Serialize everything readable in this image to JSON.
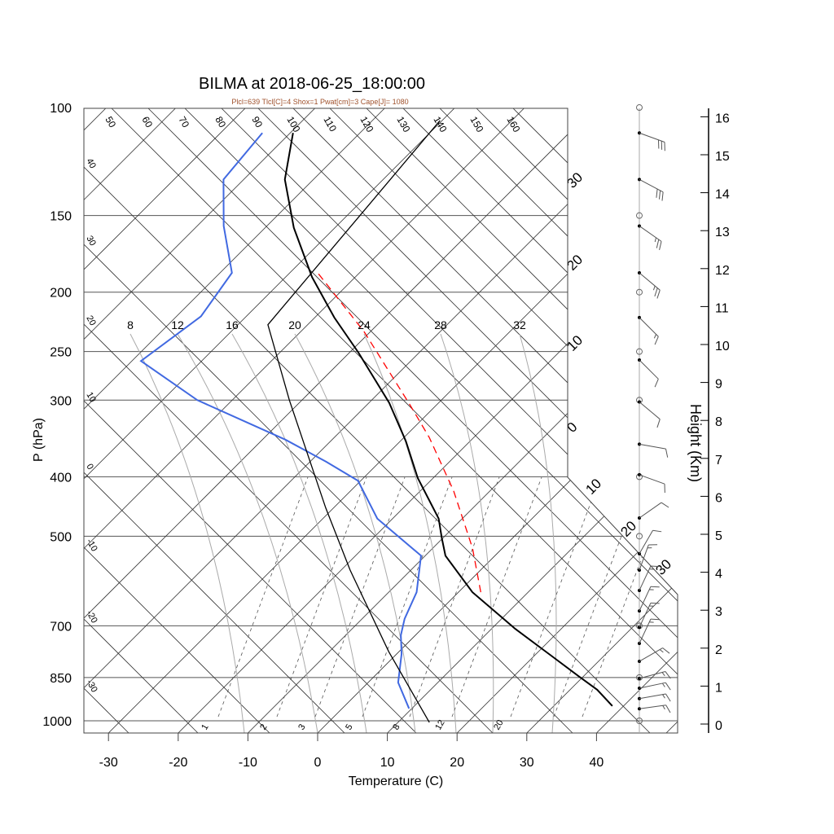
{
  "chart_data": {
    "type": "line",
    "subtype": "skew-t log-p sounding",
    "title": "BILMA at 2018-06-25_18:00:00",
    "subtitle": "Plcl=639 Tlcl[C]=4 Shox=1 Pwat[cm]=3 Cape[J]= 1080",
    "xlabel": "Temperature (C)",
    "ylabel": "P (hPa)",
    "y2label": "Height (Km)",
    "xlim": [
      -34,
      52
    ],
    "ylim": [
      1050,
      100
    ],
    "x_ticks": [
      -30,
      -20,
      -10,
      0,
      10,
      20,
      30,
      40
    ],
    "pressure_ticks": [
      100,
      150,
      200,
      250,
      300,
      400,
      500,
      700,
      850,
      1000
    ],
    "height_ticks": [
      0,
      1,
      2,
      3,
      4,
      5,
      6,
      7,
      8,
      9,
      10,
      11,
      12,
      13,
      14,
      15,
      16
    ],
    "isotherm_step": 10,
    "dry_adiabat_left_labels": [
      "40",
      "30",
      "20",
      "10",
      "0",
      "-10",
      "-20",
      "-30"
    ],
    "dry_adiabat_top_labels": [
      "50",
      "60",
      "70",
      "80",
      "90",
      "100",
      "110",
      "120",
      "130",
      "140",
      "150",
      "160"
    ],
    "moist_adiabat_labels": [
      "8",
      "12",
      "16",
      "20",
      "24",
      "28",
      "32"
    ],
    "mixing_ratio_labels": [
      "1",
      "2",
      "3",
      "5",
      "8",
      "12",
      "20"
    ],
    "isotherm_edge_labels": [
      "30",
      "20",
      "10",
      "0",
      "10",
      "20",
      "30"
    ],
    "series": [
      {
        "name": "temperature",
        "color": "#000000",
        "points": [
          [
            946,
            38.4
          ],
          [
            890,
            33.9
          ],
          [
            845,
            29.2
          ],
          [
            783,
            22.4
          ],
          [
            708,
            13.4
          ],
          [
            617,
            2.0
          ],
          [
            538,
            -7.1
          ],
          [
            503,
            -10.2
          ],
          [
            468,
            -13.4
          ],
          [
            402,
            -22.2
          ],
          [
            350,
            -29.2
          ],
          [
            303,
            -37.1
          ],
          [
            251,
            -48.7
          ],
          [
            220,
            -57.2
          ],
          [
            189,
            -66.2
          ],
          [
            157,
            -75.9
          ],
          [
            131,
            -84.1
          ],
          [
            110,
            -89.6
          ]
        ]
      },
      {
        "name": "dewpoint",
        "color": "#4169e1",
        "points": [
          [
            955,
            9.6
          ],
          [
            866,
            4.3
          ],
          [
            778,
            0.7
          ],
          [
            725,
            -2.1
          ],
          [
            682,
            -3.9
          ],
          [
            617,
            -6.0
          ],
          [
            538,
            -10.6
          ],
          [
            468,
            -22.2
          ],
          [
            406,
            -30.4
          ],
          [
            378,
            -37.7
          ],
          [
            348,
            -46.7
          ],
          [
            300,
            -65.0
          ],
          [
            259,
            -78.7
          ],
          [
            219,
            -76.5
          ],
          [
            186,
            -78.3
          ],
          [
            156,
            -86.2
          ],
          [
            131,
            -92.9
          ],
          [
            110,
            -94.0
          ]
        ]
      },
      {
        "name": "parcel",
        "color": "#ff0000",
        "dashed": true,
        "points": [
          [
            617,
            3.2
          ],
          [
            523,
            -4.3
          ],
          [
            422,
            -15.2
          ],
          [
            345,
            -26.4
          ],
          [
            305,
            -33.9
          ],
          [
            232,
            -50.9
          ],
          [
            186,
            -66.0
          ]
        ]
      },
      {
        "name": "reference-line",
        "color": "#000000",
        "points": [
          [
            1006,
            14.5
          ],
          [
            771,
            -1.5
          ],
          [
            568,
            -18.7
          ],
          [
            449,
            -31.2
          ],
          [
            300,
            -51.8
          ],
          [
            226,
            -65.7
          ],
          [
            105,
            -70.3
          ]
        ]
      }
    ],
    "winds": [
      {
        "p": 110,
        "dir": 110,
        "kt": 30
      },
      {
        "p": 131,
        "dir": 118,
        "kt": 30
      },
      {
        "p": 156,
        "dir": 125,
        "kt": 25
      },
      {
        "p": 186,
        "dir": 130,
        "kt": 25
      },
      {
        "p": 220,
        "dir": 135,
        "kt": 15
      },
      {
        "p": 258,
        "dir": 135,
        "kt": 10
      },
      {
        "p": 302,
        "dir": 130,
        "kt": 10
      },
      {
        "p": 354,
        "dir": 100,
        "kt": 10
      },
      {
        "p": 397,
        "dir": 110,
        "kt": 10
      },
      {
        "p": 467,
        "dir": 55,
        "kt": 10
      },
      {
        "p": 534,
        "dir": 30,
        "kt": 10
      },
      {
        "p": 568,
        "dir": 20,
        "kt": 15
      },
      {
        "p": 613,
        "dir": 25,
        "kt": 15
      },
      {
        "p": 662,
        "dir": 25,
        "kt": 15
      },
      {
        "p": 704,
        "dir": 25,
        "kt": 15
      },
      {
        "p": 748,
        "dir": 25,
        "kt": 15
      },
      {
        "p": 800,
        "dir": 60,
        "kt": 15
      },
      {
        "p": 853,
        "dir": 75,
        "kt": 15
      },
      {
        "p": 885,
        "dir": 78,
        "kt": 15
      },
      {
        "p": 920,
        "dir": 80,
        "kt": 15
      },
      {
        "p": 956,
        "dir": 82,
        "kt": 15
      }
    ],
    "wind_circle_levels": [
      100,
      150,
      200,
      250,
      300,
      400,
      500,
      700,
      850,
      1000
    ]
  }
}
